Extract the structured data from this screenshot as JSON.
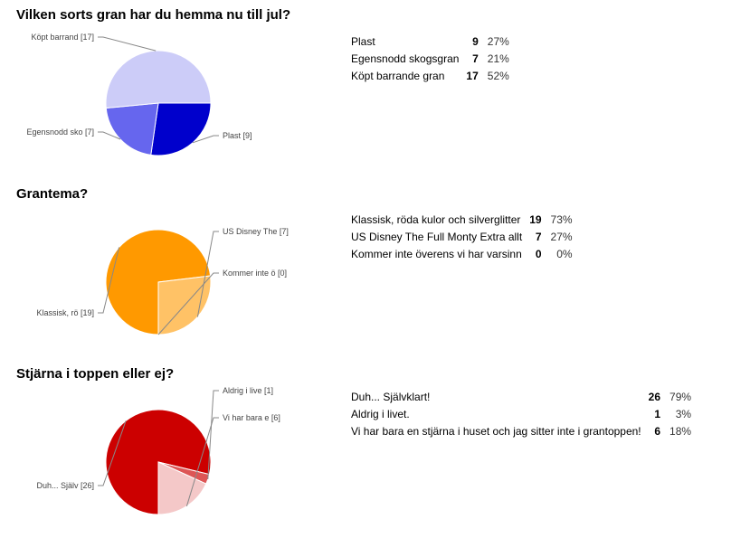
{
  "questions": [
    {
      "title": "Vilken sorts gran har du hemma nu till jul?",
      "rows": [
        {
          "label": "Plast",
          "count": "9",
          "pct": "27%"
        },
        {
          "label": "Egensnodd skogsgran",
          "count": "7",
          "pct": "21%"
        },
        {
          "label": "Köpt barrande gran",
          "count": "17",
          "pct": "52%"
        }
      ]
    },
    {
      "title": "Grantema?",
      "rows": [
        {
          "label": "Klassisk, röda kulor och silverglitter",
          "count": "19",
          "pct": "73%"
        },
        {
          "label": "US Disney The Full Monty Extra allt",
          "count": "7",
          "pct": "27%"
        },
        {
          "label": "Kommer inte överens vi har varsinn",
          "count": "0",
          "pct": "0%"
        }
      ]
    },
    {
      "title": "Stjärna i toppen eller ej?",
      "rows": [
        {
          "label": "Duh... Självklart!",
          "count": "26",
          "pct": "79%"
        },
        {
          "label": "Aldrig i livet.",
          "count": "1",
          "pct": "3%"
        },
        {
          "label": "Vi har bara en stjärna i huset och jag sitter inte i grantoppen!",
          "count": "6",
          "pct": "18%"
        }
      ]
    }
  ],
  "chart_data": [
    {
      "type": "pie",
      "title": "Vilken sorts gran har du hemma nu till jul?",
      "slices": [
        {
          "label": "Plast [9]",
          "value": 9,
          "color": "#0000cc"
        },
        {
          "label": "Egensnodd sko [7]",
          "value": 7,
          "color": "#6666ee"
        },
        {
          "label": "Köpt barrand [17]",
          "value": 17,
          "color": "#ccccf8"
        }
      ]
    },
    {
      "type": "pie",
      "title": "Grantema?",
      "slices": [
        {
          "label": "Klassisk, rö [19]",
          "value": 19,
          "color": "#ff9900"
        },
        {
          "label": "US Disney The [7]",
          "value": 7,
          "color": "#ffc266"
        },
        {
          "label": "Kommer inte ö [0]",
          "value": 0,
          "color": "#ffe0b2"
        }
      ]
    },
    {
      "type": "pie",
      "title": "Stjärna i toppen eller ej?",
      "slices": [
        {
          "label": "Duh... Själv [26]",
          "value": 26,
          "color": "#cc0000"
        },
        {
          "label": "Aldrig i live [1]",
          "value": 1,
          "color": "#dd5555"
        },
        {
          "label": "Vi har bara e [6]",
          "value": 6,
          "color": "#f4c8c8"
        }
      ]
    }
  ]
}
